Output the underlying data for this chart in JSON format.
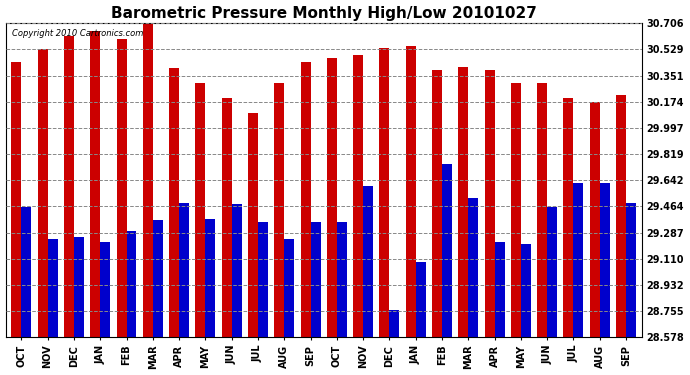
{
  "title": "Barometric Pressure Monthly High/Low 20101027",
  "copyright_text": "Copyright 2010 Cartronics.com",
  "categories": [
    "OCT",
    "NOV",
    "DEC",
    "JAN",
    "FEB",
    "MAR",
    "APR",
    "MAY",
    "JUN",
    "JUL",
    "AUG",
    "SEP",
    "OCT",
    "NOV",
    "DEC",
    "JAN",
    "FEB",
    "MAR",
    "APR",
    "MAY",
    "JUN",
    "JUL",
    "AUG",
    "SEP"
  ],
  "highs": [
    30.44,
    30.53,
    30.62,
    30.65,
    30.6,
    30.71,
    30.4,
    30.3,
    30.2,
    30.1,
    30.3,
    30.44,
    30.47,
    30.49,
    30.54,
    30.55,
    30.39,
    30.41,
    30.39,
    30.3,
    30.3,
    30.2,
    30.17,
    30.22
  ],
  "lows": [
    29.46,
    29.24,
    29.26,
    29.22,
    29.3,
    29.37,
    29.49,
    29.38,
    29.48,
    29.36,
    29.24,
    29.36,
    29.36,
    29.6,
    28.76,
    29.09,
    29.75,
    29.52,
    29.22,
    29.21,
    29.46,
    29.62,
    29.62,
    29.49
  ],
  "yticks": [
    28.578,
    28.755,
    28.932,
    29.11,
    29.287,
    29.464,
    29.642,
    29.819,
    29.997,
    30.174,
    30.351,
    30.529,
    30.706
  ],
  "ymin": 28.578,
  "ymax": 30.706,
  "bar_color_high": "#cc0000",
  "bar_color_low": "#0000cc",
  "background_color": "#ffffff",
  "plot_bg_color": "#ffffff",
  "grid_color": "#888888",
  "title_fontsize": 11,
  "bar_width": 0.38
}
